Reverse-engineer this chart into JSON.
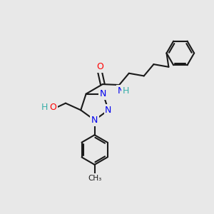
{
  "background_color": "#e8e8e8",
  "bond_color": "#1a1a1a",
  "bond_width": 1.5,
  "atom_colors": {
    "C": "#1a1a1a",
    "N": "#0000ee",
    "O": "#ff0000",
    "H": "#3aafa9"
  },
  "font_size_main": 9,
  "font_size_small": 7.5
}
